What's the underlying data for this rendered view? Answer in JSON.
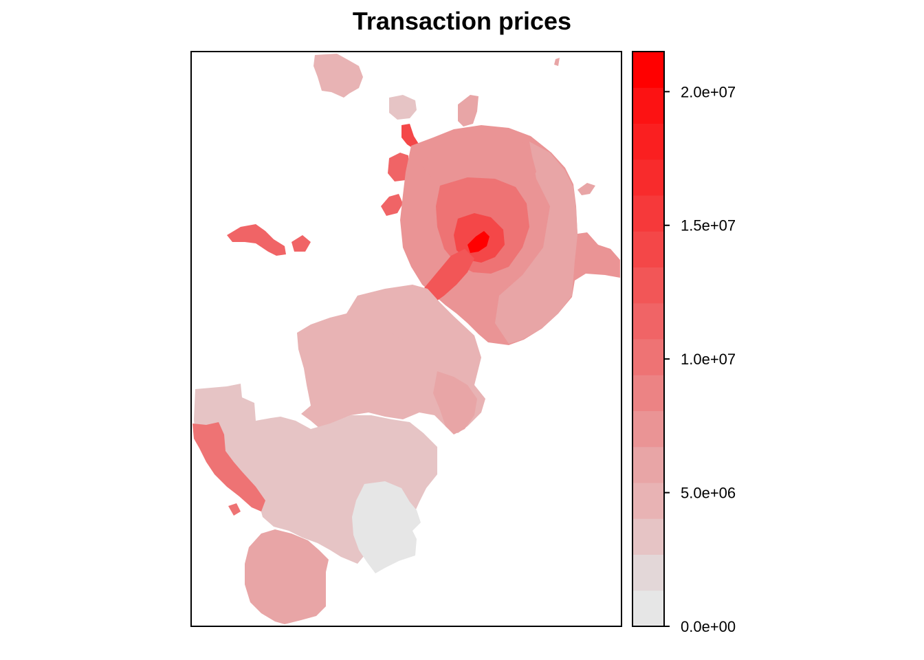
{
  "title": "Transaction prices",
  "legend": {
    "type": "colorbar",
    "placement": "right",
    "range": [
      0,
      21500000
    ],
    "break_step": 1437500,
    "colors": [
      "#e6e6e6",
      "#e3d7d8",
      "#e6c4c5",
      "#e8b3b4",
      "#e8a5a6",
      "#ea9495",
      "#ec8384",
      "#ee7374",
      "#f06466",
      "#f25657",
      "#f44748",
      "#f6393a",
      "#f82b2c",
      "#fa1f20",
      "#fc1213",
      "#ff0000"
    ],
    "ticks": [
      {
        "value": 0,
        "label": "0.0e+00"
      },
      {
        "value": 5000000,
        "label": "5.0e+06"
      },
      {
        "value": 10000000,
        "label": "1.0e+07"
      },
      {
        "value": 15000000,
        "label": "1.5e+07"
      },
      {
        "value": 20000000,
        "label": "2.0e+07"
      }
    ]
  },
  "map": {
    "subject": "choropleth of districts shaded by transaction price",
    "regions": [
      {
        "id": "north-outlier",
        "price": 4500000
      },
      {
        "id": "northern-small",
        "price": 3000000
      },
      {
        "id": "north-spur",
        "price": 6500000
      },
      {
        "id": "northwest-red",
        "price": 14000000
      },
      {
        "id": "northwest-blob",
        "price": 11000000
      },
      {
        "id": "west-islands",
        "price": 11000000
      },
      {
        "id": "ring-outer",
        "price": 7500000
      },
      {
        "id": "ring-east",
        "price": 6000000
      },
      {
        "id": "ring-north",
        "price": 7000000
      },
      {
        "id": "ring-inner",
        "price": 10000000
      },
      {
        "id": "center-core",
        "price": 14000000
      },
      {
        "id": "center-red",
        "price": 21000000
      },
      {
        "id": "southwest-diag",
        "price": 13000000
      },
      {
        "id": "west-cluster",
        "price": 5000000
      },
      {
        "id": "mid-south",
        "price": 4500000
      },
      {
        "id": "south-tongue",
        "price": 6500000
      },
      {
        "id": "new-moscow-big",
        "price": 3500000
      },
      {
        "id": "west-strip",
        "price": 9500000
      },
      {
        "id": "far-south",
        "price": 6500000
      },
      {
        "id": "south-gray",
        "price": 200000
      },
      {
        "id": "east-bits",
        "price": 5500000
      }
    ]
  }
}
